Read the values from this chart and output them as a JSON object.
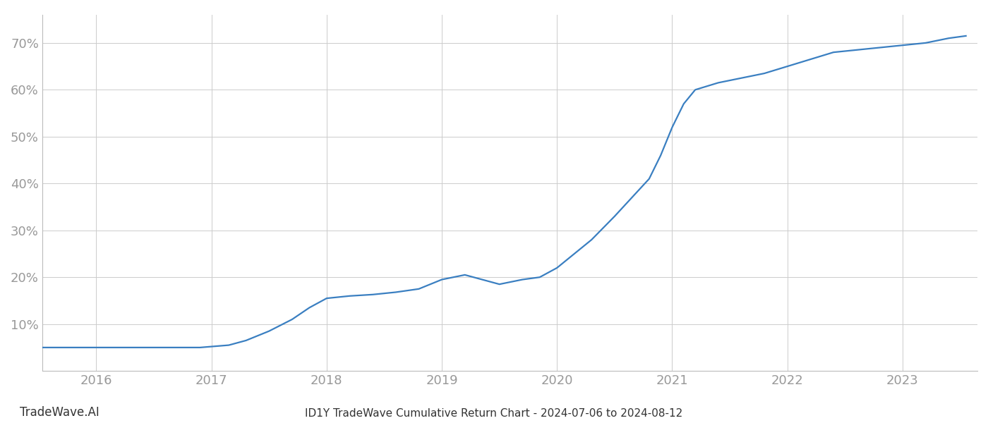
{
  "title": "ID1Y TradeWave Cumulative Return Chart - 2024-07-06 to 2024-08-12",
  "watermark": "TradeWave.AI",
  "line_color": "#3a7fc1",
  "background_color": "#ffffff",
  "grid_color": "#cccccc",
  "x_values": [
    2015.53,
    2016.0,
    2016.5,
    2016.9,
    2017.0,
    2017.15,
    2017.3,
    2017.5,
    2017.7,
    2017.85,
    2018.0,
    2018.2,
    2018.4,
    2018.6,
    2018.8,
    2019.0,
    2019.1,
    2019.2,
    2019.5,
    2019.7,
    2019.85,
    2020.0,
    2020.15,
    2020.3,
    2020.5,
    2020.65,
    2020.8,
    2020.9,
    2021.0,
    2021.1,
    2021.2,
    2021.4,
    2021.6,
    2021.8,
    2022.0,
    2022.2,
    2022.4,
    2022.6,
    2022.8,
    2023.0,
    2023.2,
    2023.4,
    2023.55
  ],
  "y_values": [
    5.0,
    5.0,
    5.0,
    5.0,
    5.2,
    5.5,
    6.5,
    8.5,
    11.0,
    13.5,
    15.5,
    16.0,
    16.3,
    16.8,
    17.5,
    19.5,
    20.0,
    20.5,
    18.5,
    19.5,
    20.0,
    22.0,
    25.0,
    28.0,
    33.0,
    37.0,
    41.0,
    46.0,
    52.0,
    57.0,
    60.0,
    61.5,
    62.5,
    63.5,
    65.0,
    66.5,
    68.0,
    68.5,
    69.0,
    69.5,
    70.0,
    71.0,
    71.5
  ],
  "xlim": [
    2015.53,
    2023.65
  ],
  "ylim": [
    0,
    76
  ],
  "xticks": [
    2016,
    2017,
    2018,
    2019,
    2020,
    2021,
    2022,
    2023
  ],
  "yticks": [
    10,
    20,
    30,
    40,
    50,
    60,
    70
  ],
  "tick_label_color": "#999999",
  "line_width": 1.6,
  "title_fontsize": 11,
  "watermark_fontsize": 12,
  "tick_fontsize": 13
}
